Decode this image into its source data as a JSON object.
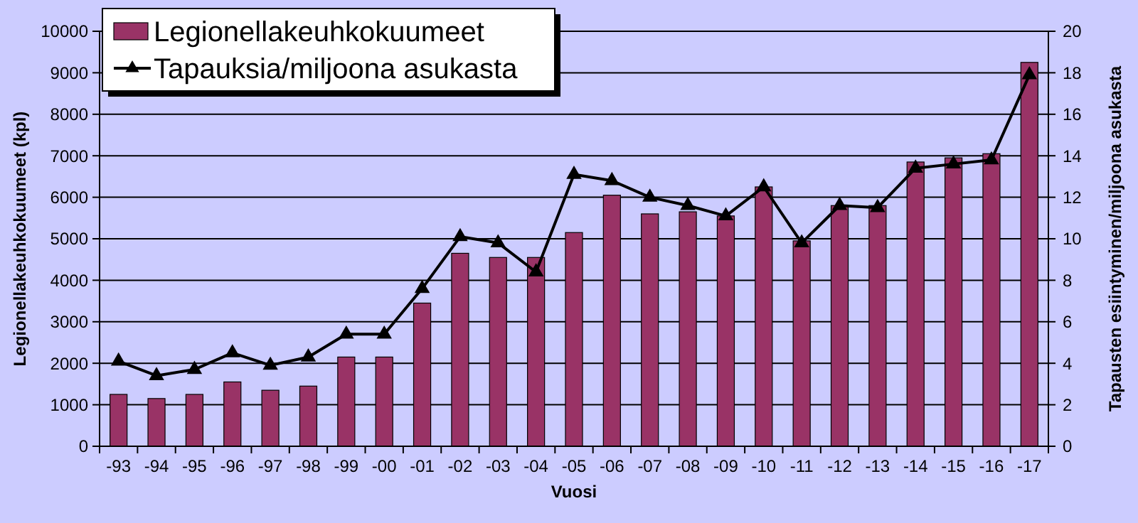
{
  "chart_data": {
    "type": "bar",
    "xlabel": "Vuosi",
    "ylabel": "Legionellakeuhkokuumeet (kpl)",
    "y2label": "Tapausten esiintyminen/miljoona asukasta",
    "categories": [
      "-93",
      "-94",
      "-95",
      "-96",
      "-97",
      "-98",
      "-99",
      "-00",
      "-01",
      "-02",
      "-03",
      "-04",
      "-05",
      "-06",
      "-07",
      "-08",
      "-09",
      "-10",
      "-11",
      "-12",
      "-13",
      "-14",
      "-15",
      "-16",
      "-17"
    ],
    "series": [
      {
        "name": "Legionellakeuhkokuumeet",
        "color": "#993366",
        "values": [
          1250,
          1150,
          1250,
          1550,
          1350,
          1450,
          2150,
          2150,
          3450,
          4650,
          4550,
          4550,
          5150,
          6050,
          5600,
          5650,
          5550,
          6250,
          4950,
          5800,
          5800,
          6850,
          6950,
          7050,
          9250
        ]
      },
      {
        "name": "Tapauksia/miljoona asukasta",
        "type": "line",
        "axis": "y2",
        "color": "#000000",
        "marker": "triangle",
        "values": [
          4.1,
          3.4,
          3.7,
          4.5,
          3.9,
          4.3,
          5.4,
          5.4,
          7.6,
          10.1,
          9.8,
          8.4,
          13.1,
          12.8,
          12.0,
          11.6,
          11.1,
          12.5,
          9.8,
          11.6,
          11.5,
          13.4,
          13.6,
          13.8,
          17.9
        ]
      }
    ],
    "ylim": [
      0,
      10000
    ],
    "yticks": [
      0,
      1000,
      2000,
      3000,
      4000,
      5000,
      6000,
      7000,
      8000,
      9000,
      10000
    ],
    "y2lim": [
      0,
      20
    ],
    "y2ticks": [
      0,
      2,
      4,
      6,
      8,
      10,
      12,
      14,
      16,
      18,
      20
    ],
    "grid": "y",
    "legend": "top left"
  }
}
